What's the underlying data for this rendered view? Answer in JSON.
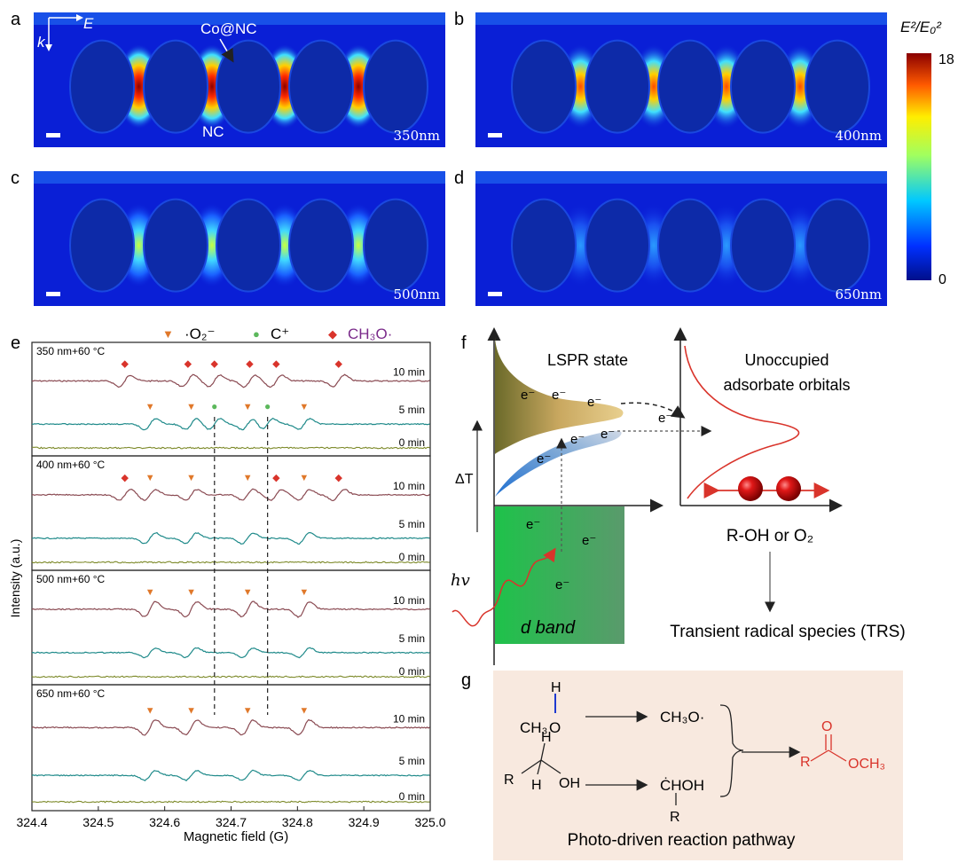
{
  "panel_letters": {
    "a": "a",
    "b": "b",
    "c": "c",
    "d": "d",
    "e": "e",
    "f": "f",
    "g": "g"
  },
  "field_maps": {
    "panels": [
      {
        "letter": "a",
        "wavelength": "350nm",
        "intensity": 1.0
      },
      {
        "letter": "b",
        "wavelength": "400nm",
        "intensity": 0.72
      },
      {
        "letter": "c",
        "wavelength": "500nm",
        "intensity": 0.5
      },
      {
        "letter": "d",
        "wavelength": "650nm",
        "intensity": 0.22
      }
    ],
    "labels": {
      "k": "k",
      "E": "E",
      "conet": "Co@NC",
      "nc": "NC"
    },
    "colorbar": {
      "title": "E²/E₀²",
      "max": "18",
      "min": "0"
    },
    "colors": {
      "bg": "#0a1fd6",
      "particle": "#0d2aa8",
      "hot": "#ff2a00"
    }
  },
  "legend": {
    "o2_symbol": "▼",
    "o2_label": "·O₂⁻",
    "c_symbol": "●",
    "c_label": "C⁺",
    "ch3o_symbol": "◆",
    "ch3o_label": "CH₃O·",
    "colors": {
      "o2": "#e0782a",
      "c": "#5cb85c",
      "ch3o": "#d9342b"
    }
  },
  "chart_data": {
    "type": "line",
    "title": "",
    "xlabel": "Magnetic field (G)",
    "ylabel": "Intensity (a.u.)",
    "xlim": [
      324.4,
      325.0
    ],
    "xticks": [
      "324.4",
      "324.5",
      "324.6",
      "324.7",
      "324.8",
      "324.9",
      "325.0"
    ],
    "groups": [
      {
        "label": "350 nm+60 °C",
        "series": [
          "10 min",
          "5 min",
          "0 min"
        ],
        "o2_peaks_10min": [],
        "ch3o_peaks_10min": [
          324.54,
          324.635,
          324.675,
          324.728,
          324.768,
          324.862
        ],
        "o2_peaks_5min": [
          324.578,
          324.64,
          324.725,
          324.81
        ],
        "c_peaks_5min": [
          324.675,
          324.755
        ]
      },
      {
        "label": "400 nm+60 °C",
        "series": [
          "10 min",
          "5 min",
          "0 min"
        ],
        "o2_peaks_10min": [
          324.578,
          324.64,
          324.725,
          324.81
        ],
        "ch3o_peaks_10min": [
          324.54,
          324.768,
          324.862
        ],
        "o2_peaks_5min": [],
        "c_peaks_5min": []
      },
      {
        "label": "500 nm+60 °C",
        "series": [
          "10 min",
          "5 min",
          "0 min"
        ],
        "o2_peaks_10min": [
          324.578,
          324.64,
          324.725,
          324.81
        ],
        "ch3o_peaks_10min": [],
        "o2_peaks_5min": [],
        "c_peaks_5min": []
      },
      {
        "label": "650 nm+60 °C",
        "series": [
          "10 min",
          "5 min",
          "0 min"
        ],
        "o2_peaks_10min": [
          324.578,
          324.64,
          324.725,
          324.81
        ],
        "ch3o_peaks_10min": [],
        "o2_peaks_5min": [],
        "c_peaks_5min": []
      }
    ],
    "dashed_lines": [
      324.675,
      324.755
    ],
    "series_colors": {
      "10 min": "#8a4a52",
      "5 min": "#1f8a8a",
      "0 min": "#7d8a2a"
    }
  },
  "panel_f": {
    "lspr": "LSPR state",
    "unocc": "Unoccupied",
    "adsorbate": "adsorbate  orbitals",
    "e": "e⁻",
    "deltaT": "ΔT",
    "hv": "hv",
    "dband": "d band",
    "roh": "R-OH or O₂",
    "trs": "Transient radical species (TRS)"
  },
  "panel_g": {
    "h": "H",
    "ch3": "CH₃",
    "o": "O",
    "ch3o_radical": "CH₃O·",
    "r": "R",
    "oh": "OH",
    "choh": "ĊHOH",
    "ester_o": "O",
    "ester_och3": "OCH₃",
    "caption": "Photo-driven reaction pathway"
  }
}
